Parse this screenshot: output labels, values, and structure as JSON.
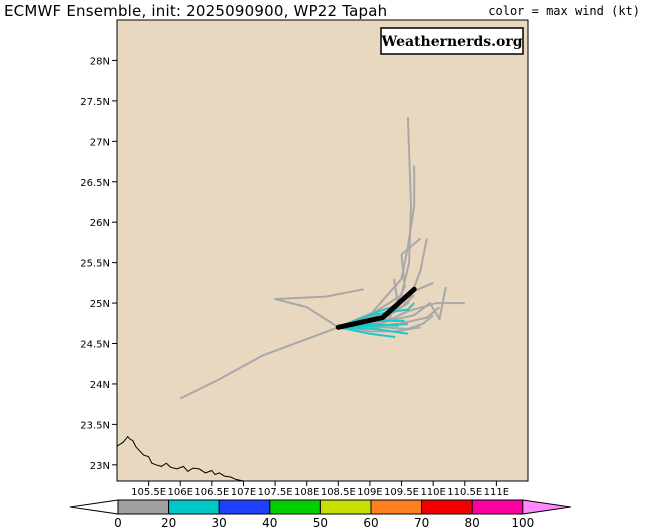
{
  "title": "ECMWF Ensemble, init: 2025090900, WP22 Tapah",
  "color_note": "color = max wind (kt)",
  "watermark": "Weathernerds.org",
  "map": {
    "background": "#e8d8c0",
    "lon_range": [
      105.0,
      111.5
    ],
    "lat_range": [
      22.8,
      28.5
    ],
    "lat_ticks": [
      "23N",
      "23.5N",
      "24N",
      "24.5N",
      "25N",
      "25.5N",
      "26N",
      "26.5N",
      "27N",
      "27.5N",
      "28N"
    ],
    "lat_values": [
      23,
      23.5,
      24,
      24.5,
      25,
      25.5,
      26,
      26.5,
      27,
      27.5,
      28
    ],
    "lon_ticks": [
      "105.5E",
      "106E",
      "106.5E",
      "107E",
      "107.5E",
      "108E",
      "108.5E",
      "109E",
      "109.5E",
      "110E",
      "110.5E",
      "111E"
    ],
    "lon_values": [
      105.5,
      106,
      106.5,
      107,
      107.5,
      108,
      108.5,
      109,
      109.5,
      110,
      110.5,
      111
    ]
  },
  "coastline": [
    [
      105.0,
      23.23
    ],
    [
      105.1,
      23.28
    ],
    [
      105.17,
      23.35
    ],
    [
      105.2,
      23.32
    ],
    [
      105.25,
      23.3
    ],
    [
      105.3,
      23.22
    ],
    [
      105.35,
      23.18
    ],
    [
      105.42,
      23.12
    ],
    [
      105.5,
      23.1
    ],
    [
      105.55,
      23.02
    ],
    [
      105.62,
      23.0
    ],
    [
      105.7,
      22.98
    ],
    [
      105.78,
      23.02
    ],
    [
      105.85,
      22.97
    ],
    [
      105.95,
      22.95
    ],
    [
      106.05,
      22.98
    ],
    [
      106.12,
      22.92
    ],
    [
      106.2,
      22.96
    ],
    [
      106.3,
      22.95
    ],
    [
      106.4,
      22.9
    ],
    [
      106.5,
      22.93
    ],
    [
      106.55,
      22.88
    ],
    [
      106.62,
      22.9
    ],
    [
      106.7,
      22.86
    ],
    [
      106.8,
      22.85
    ],
    [
      106.88,
      22.82
    ],
    [
      107.0,
      22.8
    ]
  ],
  "tracks_gray": [
    [
      [
        108.5,
        24.7
      ],
      [
        108.0,
        24.95
      ],
      [
        107.5,
        25.05
      ],
      [
        108.3,
        25.08
      ],
      [
        108.9,
        25.17
      ]
    ],
    [
      [
        108.5,
        24.7
      ],
      [
        107.3,
        24.35
      ],
      [
        106.6,
        24.05
      ],
      [
        106.0,
        23.82
      ]
    ],
    [
      [
        108.5,
        24.7
      ],
      [
        109.0,
        24.85
      ],
      [
        109.5,
        25.3
      ],
      [
        109.6,
        25.7
      ],
      [
        109.7,
        26.2
      ],
      [
        109.7,
        26.7
      ]
    ],
    [
      [
        108.5,
        24.7
      ],
      [
        109.1,
        24.9
      ],
      [
        109.5,
        25.1
      ],
      [
        109.62,
        25.5
      ],
      [
        109.65,
        26.2
      ],
      [
        109.6,
        27.3
      ]
    ],
    [
      [
        108.5,
        24.7
      ],
      [
        109.2,
        24.8
      ],
      [
        109.6,
        25.0
      ],
      [
        109.8,
        25.4
      ],
      [
        109.9,
        25.8
      ]
    ],
    [
      [
        108.5,
        24.7
      ],
      [
        109.2,
        24.75
      ],
      [
        109.6,
        24.9
      ],
      [
        110.05,
        25.0
      ],
      [
        110.5,
        25.0
      ]
    ],
    [
      [
        108.5,
        24.7
      ],
      [
        109.3,
        24.78
      ],
      [
        109.7,
        24.85
      ],
      [
        109.95,
        25.0
      ],
      [
        110.1,
        24.8
      ],
      [
        110.2,
        25.2
      ]
    ],
    [
      [
        108.5,
        24.7
      ],
      [
        109.1,
        24.72
      ],
      [
        109.5,
        24.75
      ],
      [
        109.9,
        24.82
      ],
      [
        110.1,
        24.95
      ]
    ],
    [
      [
        108.5,
        24.7
      ],
      [
        109.2,
        24.7
      ],
      [
        109.6,
        24.68
      ],
      [
        109.85,
        24.75
      ],
      [
        110.0,
        24.85
      ]
    ],
    [
      [
        108.5,
        24.7
      ],
      [
        109.3,
        24.8
      ],
      [
        109.55,
        25.2
      ],
      [
        109.5,
        25.6
      ],
      [
        109.8,
        25.8
      ]
    ],
    [
      [
        108.5,
        24.7
      ],
      [
        109.2,
        24.8
      ],
      [
        109.45,
        24.95
      ],
      [
        109.38,
        25.3
      ]
    ],
    [
      [
        108.5,
        24.7
      ],
      [
        109.3,
        24.9
      ],
      [
        109.7,
        25.15
      ],
      [
        110.0,
        25.25
      ]
    ],
    [
      [
        108.5,
        24.7
      ],
      [
        109.0,
        24.65
      ],
      [
        109.4,
        24.65
      ],
      [
        109.8,
        24.7
      ]
    ],
    [
      [
        108.5,
        24.7
      ],
      [
        109.1,
        24.85
      ],
      [
        109.5,
        24.95
      ],
      [
        109.7,
        25.1
      ]
    ]
  ],
  "tracks_cyan": [
    [
      [
        108.5,
        24.7
      ],
      [
        109.0,
        24.85
      ],
      [
        109.6,
        24.92
      ],
      [
        109.7,
        25.0
      ]
    ],
    [
      [
        108.5,
        24.7
      ],
      [
        109.1,
        24.78
      ],
      [
        109.55,
        24.78
      ]
    ],
    [
      [
        108.5,
        24.7
      ],
      [
        109.0,
        24.74
      ],
      [
        109.45,
        24.72
      ]
    ],
    [
      [
        108.5,
        24.7
      ],
      [
        109.0,
        24.62
      ],
      [
        109.4,
        24.58
      ]
    ],
    [
      [
        108.5,
        24.7
      ],
      [
        109.1,
        24.68
      ],
      [
        109.6,
        24.62
      ]
    ],
    [
      [
        108.5,
        24.7
      ],
      [
        109.15,
        24.9
      ],
      [
        109.45,
        24.98
      ]
    ],
    [
      [
        108.5,
        24.7
      ],
      [
        109.1,
        24.72
      ],
      [
        109.6,
        24.74
      ]
    ]
  ],
  "mean_track": [
    [
      108.5,
      24.7
    ],
    [
      109.2,
      24.82
    ],
    [
      109.7,
      25.17
    ]
  ],
  "colorbar": {
    "labels": [
      "0",
      "20",
      "30",
      "40",
      "50",
      "60",
      "70",
      "80",
      "100"
    ],
    "colors": [
      "#a0a0a0",
      "#00c8c8",
      "#2040ff",
      "#00d000",
      "#c8e000",
      "#ff8020",
      "#f00000",
      "#ff00a0"
    ],
    "overflow_color": "#ff88ff"
  }
}
